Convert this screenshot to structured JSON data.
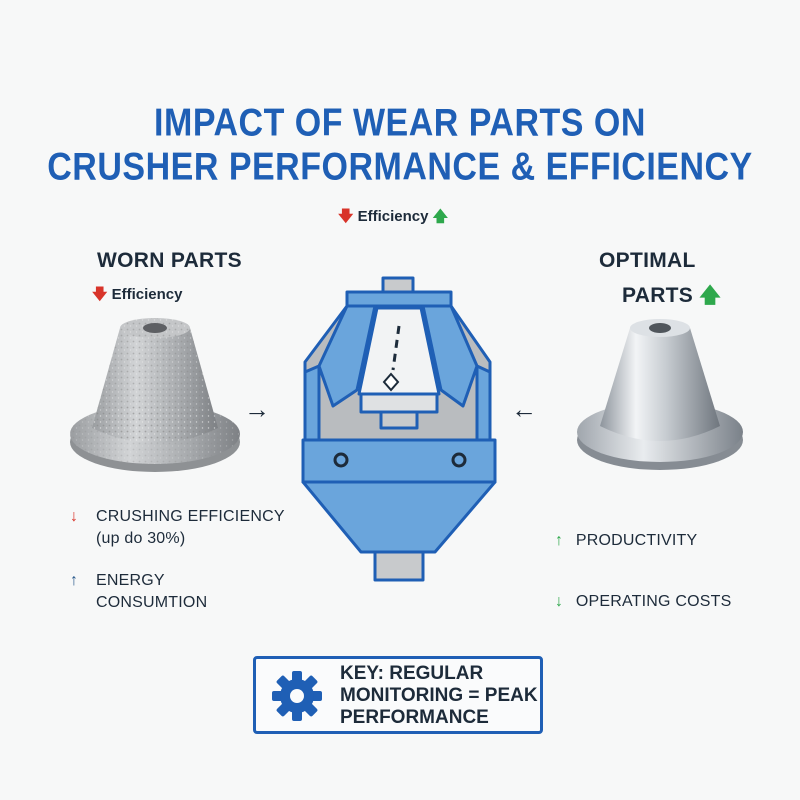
{
  "title": {
    "line1": "IMPACT OF WEAR PARTS ON",
    "line2": "CRUSHER PERFORMANCE & EFFICIENCY"
  },
  "center_label": {
    "down_arrow": "🡇",
    "text": "Efficiency",
    "up_arrow": "🡅"
  },
  "worn": {
    "heading": "WORN PARTS",
    "sub_arrow": "🡇",
    "sub_text": "Efficiency",
    "items": [
      {
        "arrow": "↓",
        "line1": "CRUSHING EFFICIENCY",
        "line2": "(up do 30%)"
      },
      {
        "arrow": "↑",
        "line1": "ENERGY",
        "line2": "CONSUMTION"
      }
    ]
  },
  "optimal": {
    "heading_line1": "OPTIMAL",
    "heading_line2": "PARTS",
    "heading_arrow": "🡅",
    "items": [
      {
        "arrow": "↑",
        "text": "PRODUCTIVITY"
      },
      {
        "arrow": "↓",
        "text": "OPERATING COSTS"
      }
    ]
  },
  "flow_arrows": {
    "left": "→",
    "right": "←"
  },
  "key": {
    "line1": "KEY: REGULAR",
    "line2": "MONITORING = PEAK",
    "line3": "PERFORMANCE",
    "icon": "gear-icon"
  },
  "colors": {
    "title": "#1f5fb5",
    "down": "#d8342a",
    "up": "#2ea84c",
    "crusher_frame": "#6aa5dc",
    "crusher_outline": "#1f5fb5"
  }
}
